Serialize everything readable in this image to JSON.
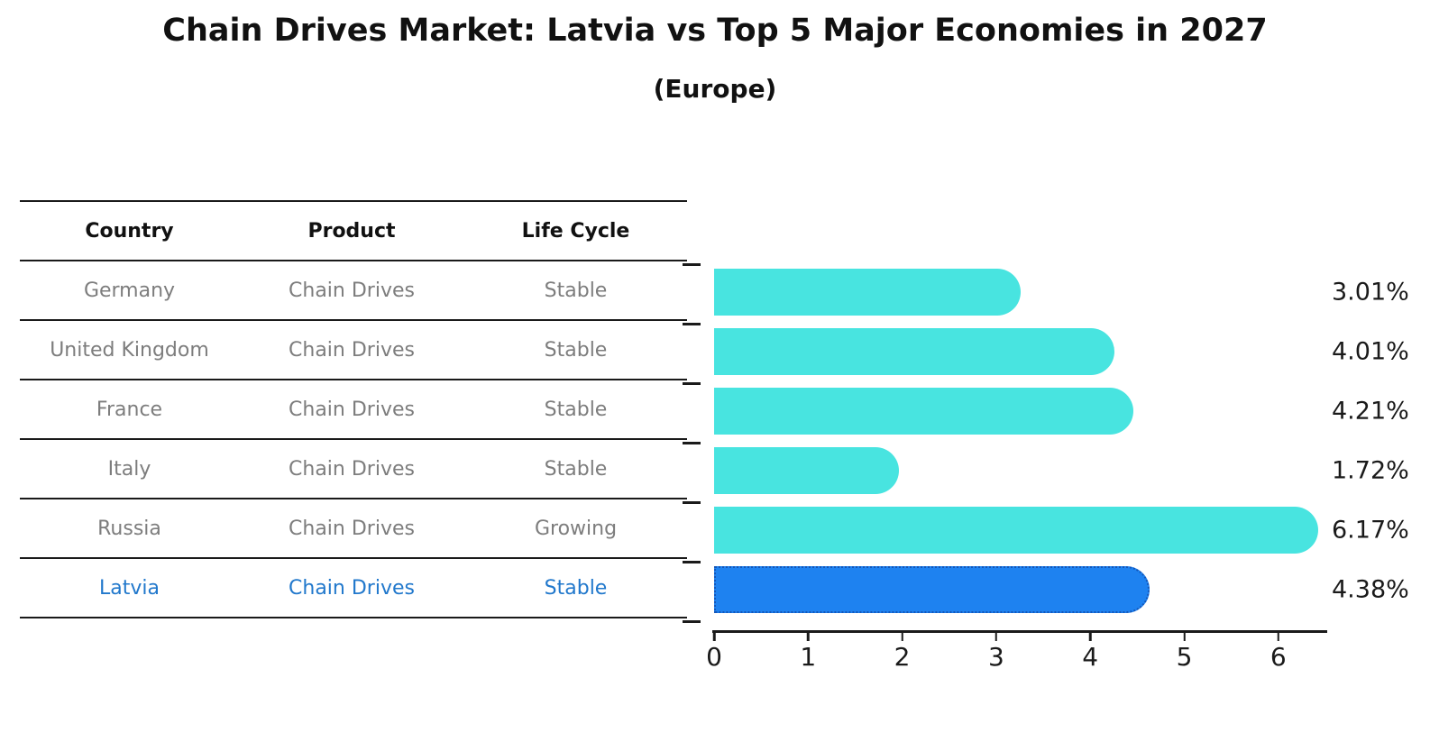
{
  "header": {
    "title": "Chain Drives Market: Latvia vs Top 5 Major Economies in 2027",
    "subtitle": "(Europe)"
  },
  "table": {
    "headers": [
      "Country",
      "Product",
      "Life Cycle"
    ],
    "rows": [
      {
        "country": "Germany",
        "product": "Chain Drives",
        "life_cycle": "Stable",
        "highlighted": false
      },
      {
        "country": "United Kingdom",
        "product": "Chain Drives",
        "life_cycle": "Stable",
        "highlighted": false
      },
      {
        "country": "France",
        "product": "Chain Drives",
        "life_cycle": "Stable",
        "highlighted": false
      },
      {
        "country": "Italy",
        "product": "Chain Drives",
        "life_cycle": "Stable",
        "highlighted": false
      },
      {
        "country": "Russia",
        "product": "Chain Drives",
        "life_cycle": "Growing",
        "highlighted": false
      },
      {
        "country": "Latvia",
        "product": "Chain Drives",
        "life_cycle": "Stable",
        "highlighted": true
      }
    ]
  },
  "chart_data": {
    "type": "bar",
    "orientation": "horizontal",
    "title": "Chain Drives Market: Latvia vs Top 5 Major Economies in 2027",
    "subtitle": "(Europe)",
    "categories": [
      "Germany",
      "United Kingdom",
      "France",
      "Italy",
      "Russia",
      "Latvia"
    ],
    "values": [
      3.01,
      4.01,
      4.21,
      1.72,
      6.17,
      4.38
    ],
    "value_labels": [
      "3.01%",
      "4.01%",
      "4.21%",
      "1.72%",
      "6.17%",
      "4.38%"
    ],
    "x_ticks": [
      "0",
      "1",
      "2",
      "3",
      "4",
      "5",
      "6"
    ],
    "xlim": [
      0,
      6.5
    ],
    "grid": false,
    "legend": "none",
    "bar_color": "#48E4E0",
    "highlight_index": 5,
    "highlight_color": "#1E82F0",
    "highlight_border_color": "#1456B8",
    "highlight_text_color": "#2178CC",
    "axis_color": "#1a1a1a"
  },
  "colors": {
    "table_text": "#7d7d7d",
    "header_text": "#111111",
    "line": "#1a1a1a"
  }
}
